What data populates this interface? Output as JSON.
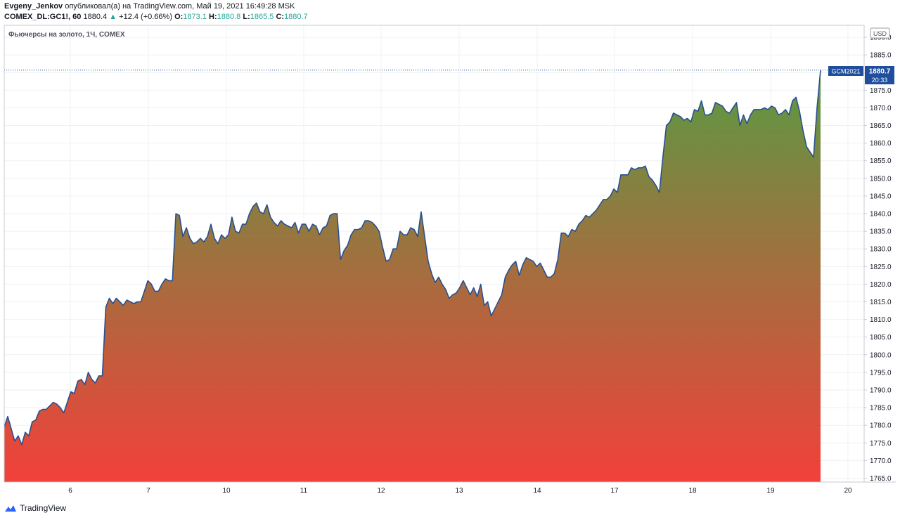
{
  "header": {
    "author": "Evgeny_Jenkov",
    "published_text": " опубликовал(а) на TradingView.com, Май 19, 2021 16:49:28 MSK",
    "symbol": "COMEX_DL:GC1!, 60",
    "last": "1880.4",
    "change_arrow": "▲",
    "change": "+12.4 (+0.66%)",
    "o_label": "O:",
    "o_value": "1873.1",
    "h_label": "H:",
    "h_value": "1880.8",
    "l_label": "L:",
    "l_value": "1865.5",
    "c_label": "C:",
    "c_value": "1880.7"
  },
  "chart_title": "Фьючерсы на золото, 1Ч, COMEX",
  "currency_badge": "USD",
  "price_tag": {
    "symbol": "GCM2021",
    "price": "1880.7",
    "countdown": "20:33"
  },
  "footer": {
    "brand": "TradingView"
  },
  "colors": {
    "line": "#2a4f8f",
    "fill_top": "#5a9a42",
    "fill_bottom": "#f2403a",
    "tag_bg": "#1f4e9c",
    "grid": "#eef0f4"
  },
  "chart_data": {
    "type": "area",
    "title": "Фьючерсы на золото, 1Ч, COMEX",
    "ylabel": "USD",
    "ylim": [
      1763.9,
      1893.4
    ],
    "y_ticks": [
      1765,
      1770,
      1775,
      1780,
      1785,
      1790,
      1795,
      1800,
      1805,
      1810,
      1815,
      1820,
      1825,
      1830,
      1835,
      1840,
      1845,
      1850,
      1855,
      1860,
      1865,
      1870,
      1875,
      1880,
      1885,
      1890
    ],
    "x_tick_labels": [
      "6",
      "7",
      "10",
      "11",
      "12",
      "13",
      "14",
      "17",
      "18",
      "19",
      "20"
    ],
    "grid": true,
    "series": [
      {
        "values": [
          1779.5,
          1782.5,
          1779,
          1775.5,
          1777,
          1774.5,
          1778,
          1777,
          1781,
          1781.5,
          1784,
          1784.5,
          1784.5,
          1785.5,
          1786.5,
          1786,
          1785,
          1783.5,
          1786.5,
          1789.5,
          1789,
          1792.5,
          1793,
          1791.5,
          1795,
          1793,
          1792,
          1794,
          1794,
          1813.5,
          1816,
          1814.5,
          1816,
          1815,
          1814,
          1815.5,
          1815,
          1814.5,
          1815,
          1815,
          1818,
          1821,
          1820,
          1818,
          1818,
          1820,
          1821.5,
          1821,
          1821,
          1840,
          1839.5,
          1833.5,
          1836,
          1833,
          1831.5,
          1832,
          1833,
          1832,
          1833.5,
          1837,
          1833,
          1831.5,
          1834,
          1833,
          1834,
          1839,
          1835,
          1834.5,
          1837,
          1837,
          1840,
          1842,
          1843,
          1840.5,
          1840,
          1842.5,
          1839,
          1837.5,
          1836.5,
          1838,
          1837,
          1836.5,
          1836,
          1837.5,
          1834.5,
          1837,
          1837,
          1835,
          1837,
          1836.5,
          1834,
          1836,
          1836.5,
          1839.5,
          1840,
          1840,
          1827,
          1829.5,
          1831,
          1834,
          1835.5,
          1835.5,
          1836,
          1838,
          1838,
          1837.5,
          1836.5,
          1835,
          1830.5,
          1826.5,
          1827,
          1830,
          1830,
          1835,
          1834,
          1834,
          1836,
          1835.5,
          1833.5,
          1840.5,
          1833.5,
          1826.5,
          1823,
          1820.5,
          1822,
          1820,
          1818.5,
          1816,
          1817,
          1817.5,
          1819,
          1821,
          1819,
          1817,
          1819,
          1816.5,
          1820,
          1814,
          1815,
          1811,
          1813,
          1815,
          1817,
          1822,
          1824,
          1825.5,
          1826.5,
          1822.5,
          1825.5,
          1827.5,
          1827,
          1826.5,
          1825,
          1826,
          1824,
          1822,
          1822,
          1823,
          1827,
          1834.5,
          1834.5,
          1833.5,
          1835.5,
          1835,
          1837,
          1838,
          1839.5,
          1839,
          1840,
          1841,
          1842.5,
          1844,
          1844,
          1845,
          1847,
          1846,
          1851,
          1851,
          1851,
          1853,
          1852.5,
          1853,
          1853,
          1853.5,
          1850.5,
          1849.5,
          1848,
          1846,
          1856,
          1865,
          1866,
          1868.5,
          1868,
          1867.5,
          1866.5,
          1867,
          1866,
          1869.5,
          1869,
          1872,
          1868,
          1868,
          1868.5,
          1871.5,
          1871,
          1870.5,
          1869,
          1868.5,
          1870,
          1871.5,
          1865,
          1868,
          1865.5,
          1868,
          1869.5,
          1869.5,
          1869.5,
          1870,
          1869.5,
          1870.5,
          1870,
          1868,
          1868.5,
          1869.5,
          1868,
          1872,
          1873,
          1869,
          1863.5,
          1859,
          1857.5,
          1856,
          1870,
          1880.7
        ]
      }
    ]
  }
}
